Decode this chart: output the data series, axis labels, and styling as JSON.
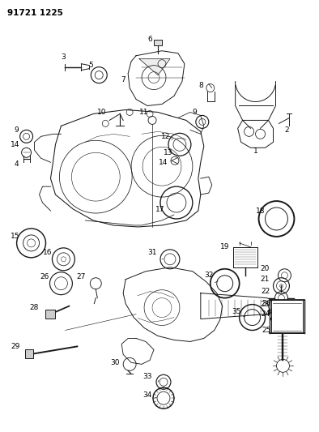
{
  "title_code": "91721 1225",
  "bg_color": "#ffffff",
  "line_color": "#1a1a1a",
  "fig_w": 3.94,
  "fig_h": 5.33,
  "dpi": 100
}
